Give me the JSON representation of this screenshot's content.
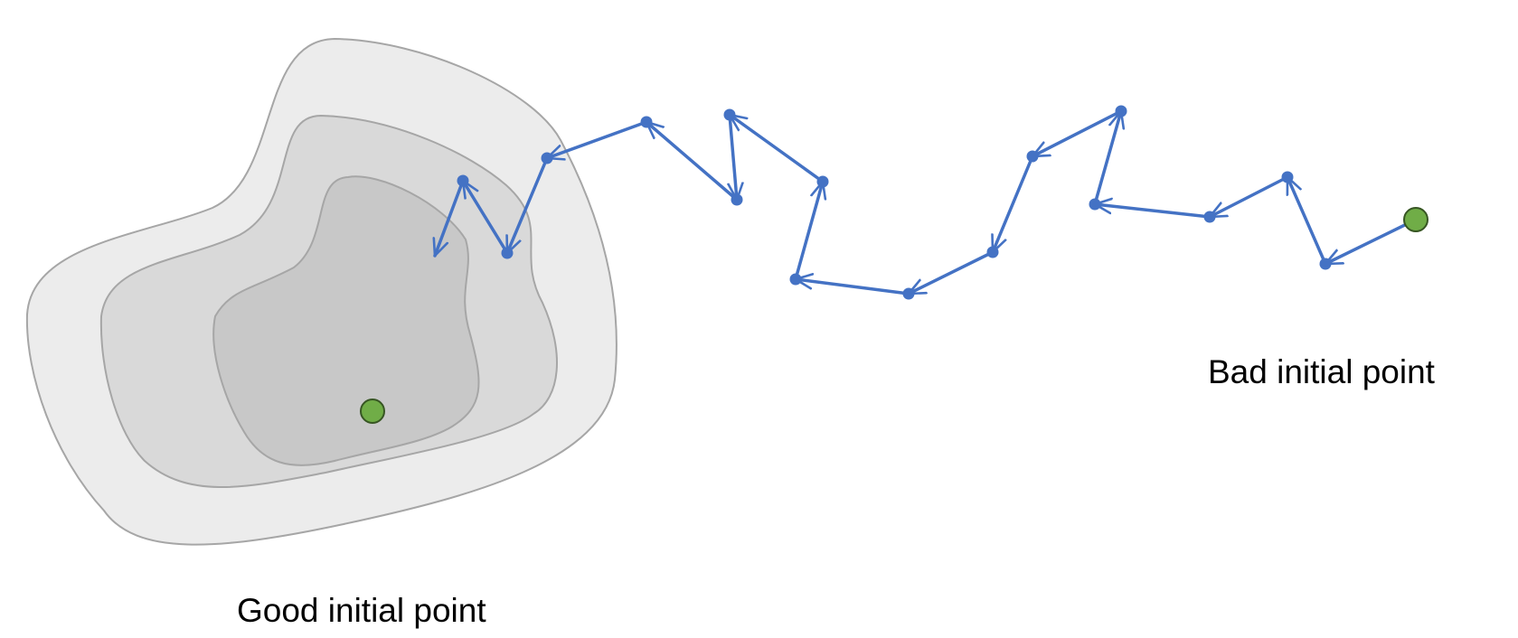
{
  "labels": {
    "good_point": "Good initial point",
    "bad_point": "Bad initial point"
  },
  "colors": {
    "background": "#ffffff",
    "contour_outer": "#ececec",
    "contour_middle": "#d9d9d9",
    "contour_inner": "#c8c8c8",
    "contour_stroke": "#a6a6a6",
    "path": "#4472c4",
    "initial_point_fill": "#70ad47",
    "initial_point_stroke": "#375623"
  },
  "icons": {
    "start_marker": "green-circle",
    "step_marker": "blue-dot",
    "step_arrow": "open-arrowhead"
  }
}
